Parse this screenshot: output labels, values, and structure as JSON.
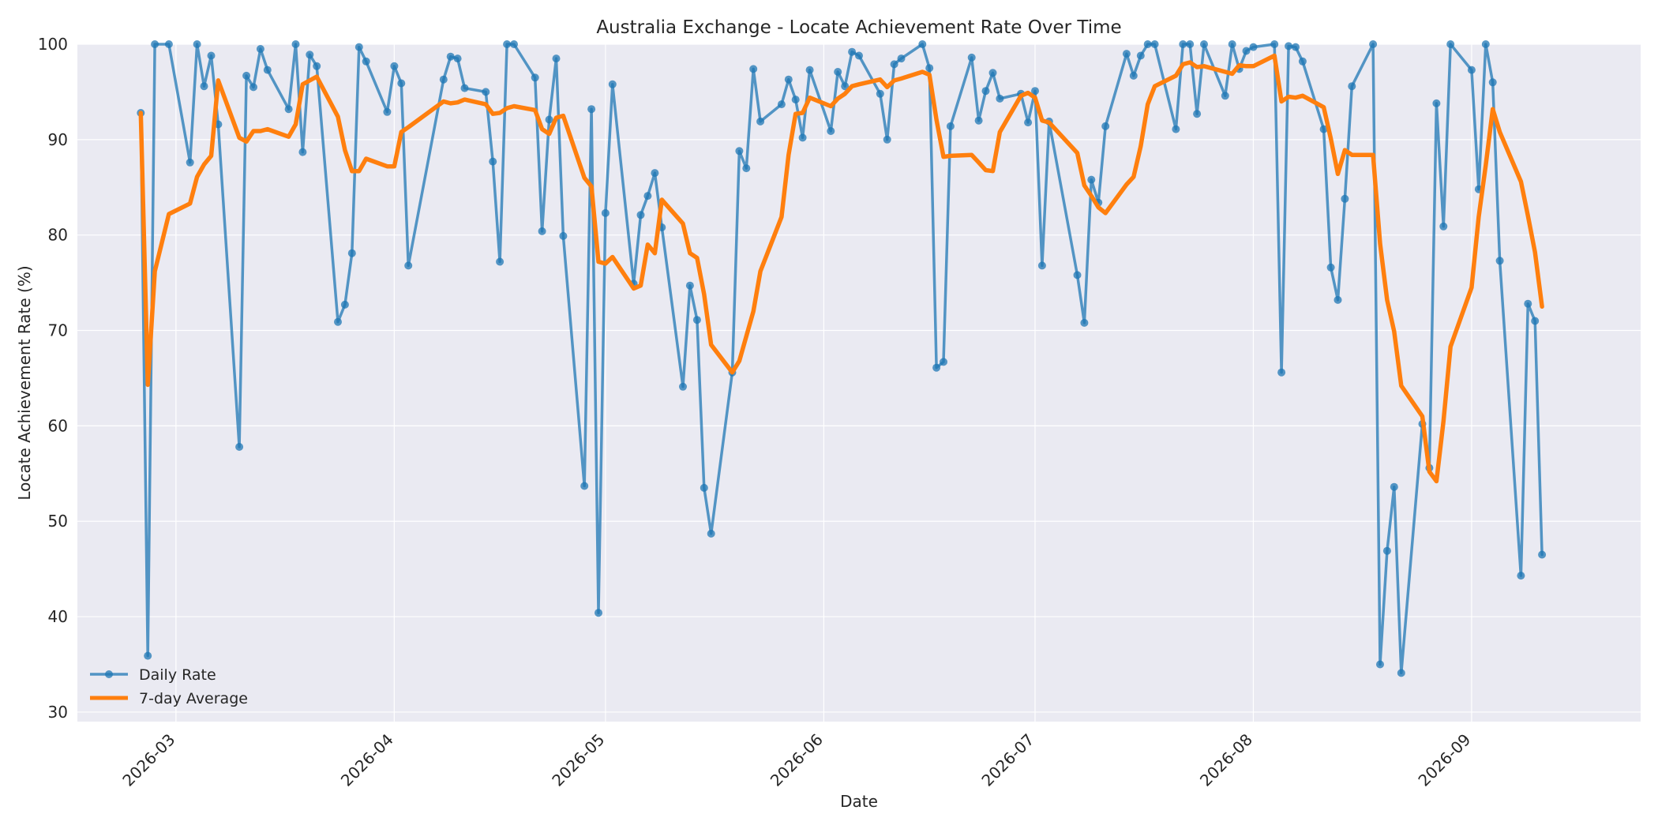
{
  "chart_data": {
    "type": "line",
    "title": "Australia Exchange - Locate Achievement Rate Over Time",
    "xlabel": "Date",
    "ylabel": "Locate Achievement Rate (%)",
    "xlim": [
      "2026-02-15",
      "2026-09-25"
    ],
    "ylim": [
      29,
      100
    ],
    "yticks": [
      30,
      40,
      50,
      60,
      70,
      80,
      90,
      100
    ],
    "xticks": [
      "2026-03",
      "2026-04",
      "2026-05",
      "2026-06",
      "2026-07",
      "2026-08",
      "2026-09"
    ],
    "grid": true,
    "legend_position": "bottom-left",
    "series": [
      {
        "name": "Daily Rate",
        "color": "#1f77b4",
        "marker": true,
        "points": [
          [
            "2026-02-24",
            92.8
          ],
          [
            "2026-02-25",
            35.9
          ],
          [
            "2026-02-26",
            100
          ],
          [
            "2026-02-28",
            100
          ],
          [
            "2026-03-03",
            87.6
          ],
          [
            "2026-03-04",
            100
          ],
          [
            "2026-03-05",
            95.6
          ],
          [
            "2026-03-06",
            98.8
          ],
          [
            "2026-03-07",
            91.6
          ],
          [
            "2026-03-10",
            57.8
          ],
          [
            "2026-03-11",
            96.7
          ],
          [
            "2026-03-12",
            95.5
          ],
          [
            "2026-03-13",
            99.5
          ],
          [
            "2026-03-14",
            97.3
          ],
          [
            "2026-03-17",
            93.2
          ],
          [
            "2026-03-18",
            100
          ],
          [
            "2026-03-19",
            88.7
          ],
          [
            "2026-03-20",
            98.9
          ],
          [
            "2026-03-21",
            97.7
          ],
          [
            "2026-03-24",
            70.9
          ],
          [
            "2026-03-25",
            72.7
          ],
          [
            "2026-03-26",
            78.1
          ],
          [
            "2026-03-27",
            99.7
          ],
          [
            "2026-03-28",
            98.2
          ],
          [
            "2026-03-31",
            92.9
          ],
          [
            "2026-04-01",
            97.7
          ],
          [
            "2026-04-02",
            95.9
          ],
          [
            "2026-04-03",
            76.8
          ],
          [
            "2026-04-08",
            96.3
          ],
          [
            "2026-04-09",
            98.7
          ],
          [
            "2026-04-10",
            98.5
          ],
          [
            "2026-04-11",
            95.4
          ],
          [
            "2026-04-14",
            95
          ],
          [
            "2026-04-15",
            87.7
          ],
          [
            "2026-04-16",
            77.2
          ],
          [
            "2026-04-17",
            100
          ],
          [
            "2026-04-18",
            100
          ],
          [
            "2026-04-21",
            96.5
          ],
          [
            "2026-04-22",
            80.4
          ],
          [
            "2026-04-23",
            92.1
          ],
          [
            "2026-04-24",
            98.5
          ],
          [
            "2026-04-25",
            79.9
          ],
          [
            "2026-04-28",
            53.7
          ],
          [
            "2026-04-29",
            93.2
          ],
          [
            "2026-04-30",
            40.4
          ],
          [
            "2026-05-01",
            82.3
          ],
          [
            "2026-05-02",
            95.8
          ],
          [
            "2026-05-05",
            74.9
          ],
          [
            "2026-05-06",
            82.1
          ],
          [
            "2026-05-07",
            84.1
          ],
          [
            "2026-05-08",
            86.5
          ],
          [
            "2026-05-09",
            80.8
          ],
          [
            "2026-05-12",
            64.1
          ],
          [
            "2026-05-13",
            74.7
          ],
          [
            "2026-05-14",
            71.1
          ],
          [
            "2026-05-15",
            53.5
          ],
          [
            "2026-05-16",
            48.7
          ],
          [
            "2026-05-19",
            65.6
          ],
          [
            "2026-05-20",
            88.8
          ],
          [
            "2026-05-21",
            87
          ],
          [
            "2026-05-22",
            97.4
          ],
          [
            "2026-05-23",
            91.9
          ],
          [
            "2026-05-26",
            93.7
          ],
          [
            "2026-05-27",
            96.3
          ],
          [
            "2026-05-28",
            94.2
          ],
          [
            "2026-05-29",
            90.2
          ],
          [
            "2026-05-30",
            97.3
          ],
          [
            "2026-06-02",
            90.9
          ],
          [
            "2026-06-03",
            97.1
          ],
          [
            "2026-06-04",
            95.6
          ],
          [
            "2026-06-05",
            99.2
          ],
          [
            "2026-06-06",
            98.8
          ],
          [
            "2026-06-09",
            94.8
          ],
          [
            "2026-06-10",
            90
          ],
          [
            "2026-06-11",
            97.9
          ],
          [
            "2026-06-12",
            98.5
          ],
          [
            "2026-06-15",
            100
          ],
          [
            "2026-06-16",
            97.5
          ],
          [
            "2026-06-17",
            66.1
          ],
          [
            "2026-06-18",
            66.7
          ],
          [
            "2026-06-19",
            91.4
          ],
          [
            "2026-06-22",
            98.6
          ],
          [
            "2026-06-23",
            92
          ],
          [
            "2026-06-24",
            95.1
          ],
          [
            "2026-06-25",
            97
          ],
          [
            "2026-06-26",
            94.3
          ],
          [
            "2026-06-29",
            94.8
          ],
          [
            "2026-06-30",
            91.8
          ],
          [
            "2026-07-01",
            95.1
          ],
          [
            "2026-07-02",
            76.8
          ],
          [
            "2026-07-03",
            91.9
          ],
          [
            "2026-07-07",
            75.8
          ],
          [
            "2026-07-08",
            70.8
          ],
          [
            "2026-07-09",
            85.8
          ],
          [
            "2026-07-10",
            83.4
          ],
          [
            "2026-07-11",
            91.4
          ],
          [
            "2026-07-14",
            99
          ],
          [
            "2026-07-15",
            96.7
          ],
          [
            "2026-07-16",
            98.8
          ],
          [
            "2026-07-17",
            100
          ],
          [
            "2026-07-18",
            100
          ],
          [
            "2026-07-21",
            91.1
          ],
          [
            "2026-07-22",
            100
          ],
          [
            "2026-07-23",
            100
          ],
          [
            "2026-07-24",
            92.7
          ],
          [
            "2026-07-25",
            100
          ],
          [
            "2026-07-28",
            94.6
          ],
          [
            "2026-07-29",
            100
          ],
          [
            "2026-07-30",
            97.4
          ],
          [
            "2026-07-31",
            99.3
          ],
          [
            "2026-08-01",
            99.7
          ],
          [
            "2026-08-04",
            100
          ],
          [
            "2026-08-05",
            65.6
          ],
          [
            "2026-08-06",
            99.8
          ],
          [
            "2026-08-07",
            99.7
          ],
          [
            "2026-08-08",
            98.2
          ],
          [
            "2026-08-11",
            91.1
          ],
          [
            "2026-08-12",
            76.6
          ],
          [
            "2026-08-13",
            73.2
          ],
          [
            "2026-08-14",
            83.8
          ],
          [
            "2026-08-15",
            95.6
          ],
          [
            "2026-08-18",
            100
          ],
          [
            "2026-08-19",
            35
          ],
          [
            "2026-08-20",
            46.9
          ],
          [
            "2026-08-21",
            53.6
          ],
          [
            "2026-08-22",
            34.1
          ],
          [
            "2026-08-25",
            60.2
          ],
          [
            "2026-08-26",
            55.6
          ],
          [
            "2026-08-27",
            93.8
          ],
          [
            "2026-08-28",
            80.9
          ],
          [
            "2026-08-29",
            100
          ],
          [
            "2026-09-01",
            97.3
          ],
          [
            "2026-09-02",
            84.8
          ],
          [
            "2026-09-03",
            100
          ],
          [
            "2026-09-04",
            96
          ],
          [
            "2026-09-05",
            77.3
          ],
          [
            "2026-09-08",
            44.3
          ],
          [
            "2026-09-09",
            72.8
          ],
          [
            "2026-09-10",
            71
          ],
          [
            "2026-09-11",
            46.5
          ]
        ]
      },
      {
        "name": "7-day Average",
        "color": "#ff7f0e",
        "marker": false,
        "points": [
          [
            "2026-02-24",
            92.8
          ],
          [
            "2026-02-25",
            64.3
          ],
          [
            "2026-02-26",
            76.2
          ],
          [
            "2026-02-28",
            82.2
          ],
          [
            "2026-03-03",
            83.3
          ],
          [
            "2026-03-04",
            86.1
          ],
          [
            "2026-03-05",
            87.4
          ],
          [
            "2026-03-06",
            88.3
          ],
          [
            "2026-03-07",
            96.2
          ],
          [
            "2026-03-10",
            90.2
          ],
          [
            "2026-03-11",
            89.8
          ],
          [
            "2026-03-12",
            90.9
          ],
          [
            "2026-03-13",
            90.9
          ],
          [
            "2026-03-14",
            91.1
          ],
          [
            "2026-03-17",
            90.3
          ],
          [
            "2026-03-18",
            91.6
          ],
          [
            "2026-03-19",
            95.8
          ],
          [
            "2026-03-20",
            96.2
          ],
          [
            "2026-03-21",
            96.6
          ],
          [
            "2026-03-24",
            92.4
          ],
          [
            "2026-03-25",
            88.9
          ],
          [
            "2026-03-26",
            86.7
          ],
          [
            "2026-03-27",
            86.7
          ],
          [
            "2026-03-28",
            88
          ],
          [
            "2026-03-31",
            87.2
          ],
          [
            "2026-04-01",
            87.2
          ],
          [
            "2026-04-02",
            90.8
          ],
          [
            "2026-04-03",
            91.3
          ],
          [
            "2026-04-08",
            94
          ],
          [
            "2026-04-09",
            93.8
          ],
          [
            "2026-04-10",
            93.9
          ],
          [
            "2026-04-11",
            94.2
          ],
          [
            "2026-04-14",
            93.7
          ],
          [
            "2026-04-15",
            92.7
          ],
          [
            "2026-04-16",
            92.8
          ],
          [
            "2026-04-17",
            93.3
          ],
          [
            "2026-04-18",
            93.5
          ],
          [
            "2026-04-21",
            93.1
          ],
          [
            "2026-04-22",
            91.1
          ],
          [
            "2026-04-23",
            90.6
          ],
          [
            "2026-04-24",
            92.3
          ],
          [
            "2026-04-25",
            92.5
          ],
          [
            "2026-04-28",
            86
          ],
          [
            "2026-04-29",
            85.1
          ],
          [
            "2026-04-30",
            77.2
          ],
          [
            "2026-05-01",
            77
          ],
          [
            "2026-05-02",
            77.7
          ],
          [
            "2026-05-05",
            74.4
          ],
          [
            "2026-05-06",
            74.7
          ],
          [
            "2026-05-07",
            79
          ],
          [
            "2026-05-08",
            78.1
          ],
          [
            "2026-05-09",
            83.7
          ],
          [
            "2026-05-12",
            81.2
          ],
          [
            "2026-05-13",
            78.1
          ],
          [
            "2026-05-14",
            77.6
          ],
          [
            "2026-05-15",
            73.8
          ],
          [
            "2026-05-16",
            68.5
          ],
          [
            "2026-05-19",
            65.6
          ],
          [
            "2026-05-20",
            66.8
          ],
          [
            "2026-05-22",
            72
          ],
          [
            "2026-05-23",
            76.2
          ],
          [
            "2026-05-26",
            81.9
          ],
          [
            "2026-05-27",
            88.4
          ],
          [
            "2026-05-28",
            92.7
          ],
          [
            "2026-05-29",
            92.8
          ],
          [
            "2026-05-30",
            94.4
          ],
          [
            "2026-06-02",
            93.5
          ],
          [
            "2026-06-03",
            94.3
          ],
          [
            "2026-06-04",
            94.8
          ],
          [
            "2026-06-05",
            95.6
          ],
          [
            "2026-06-06",
            95.8
          ],
          [
            "2026-06-09",
            96.3
          ],
          [
            "2026-06-10",
            95.5
          ],
          [
            "2026-06-11",
            96.2
          ],
          [
            "2026-06-12",
            96.4
          ],
          [
            "2026-06-15",
            97.1
          ],
          [
            "2026-06-16",
            96.8
          ],
          [
            "2026-06-17",
            92.1
          ],
          [
            "2026-06-18",
            88.2
          ],
          [
            "2026-06-19",
            88.3
          ],
          [
            "2026-06-22",
            88.4
          ],
          [
            "2026-06-23",
            87.6
          ],
          [
            "2026-06-24",
            86.8
          ],
          [
            "2026-06-25",
            86.7
          ],
          [
            "2026-06-26",
            90.8
          ],
          [
            "2026-06-29",
            94.6
          ],
          [
            "2026-06-30",
            94.9
          ],
          [
            "2026-07-01",
            94.4
          ],
          [
            "2026-07-02",
            92
          ],
          [
            "2026-07-03",
            91.8
          ],
          [
            "2026-07-07",
            88.6
          ],
          [
            "2026-07-08",
            85.2
          ],
          [
            "2026-07-09",
            84.1
          ],
          [
            "2026-07-10",
            82.9
          ],
          [
            "2026-07-11",
            82.3
          ],
          [
            "2026-07-14",
            85.3
          ],
          [
            "2026-07-15",
            86.1
          ],
          [
            "2026-07-16",
            89.3
          ],
          [
            "2026-07-17",
            93.7
          ],
          [
            "2026-07-18",
            95.6
          ],
          [
            "2026-07-21",
            96.7
          ],
          [
            "2026-07-22",
            97.9
          ],
          [
            "2026-07-23",
            98.1
          ],
          [
            "2026-07-24",
            97.6
          ],
          [
            "2026-07-25",
            97.7
          ],
          [
            "2026-07-28",
            97.1
          ],
          [
            "2026-07-29",
            96.9
          ],
          [
            "2026-07-30",
            97.8
          ],
          [
            "2026-07-31",
            97.7
          ],
          [
            "2026-08-01",
            97.7
          ],
          [
            "2026-08-04",
            98.8
          ],
          [
            "2026-08-05",
            94
          ],
          [
            "2026-08-06",
            94.5
          ],
          [
            "2026-08-07",
            94.4
          ],
          [
            "2026-08-08",
            94.6
          ],
          [
            "2026-08-11",
            93.4
          ],
          [
            "2026-08-12",
            90.1
          ],
          [
            "2026-08-13",
            86.4
          ],
          [
            "2026-08-14",
            88.9
          ],
          [
            "2026-08-15",
            88.4
          ],
          [
            "2026-08-18",
            88.4
          ],
          [
            "2026-08-19",
            79.1
          ],
          [
            "2026-08-20",
            73.2
          ],
          [
            "2026-08-21",
            69.9
          ],
          [
            "2026-08-22",
            64.2
          ],
          [
            "2026-08-25",
            61
          ],
          [
            "2026-08-26",
            55.2
          ],
          [
            "2026-08-27",
            54.2
          ],
          [
            "2026-08-28",
            60.5
          ],
          [
            "2026-08-29",
            68.3
          ],
          [
            "2026-09-01",
            74.5
          ],
          [
            "2026-09-02",
            81.9
          ],
          [
            "2026-09-03",
            87.3
          ],
          [
            "2026-09-04",
            93.2
          ],
          [
            "2026-09-05",
            90.8
          ],
          [
            "2026-09-08",
            85.6
          ],
          [
            "2026-09-09",
            82
          ],
          [
            "2026-09-10",
            78.2
          ],
          [
            "2026-09-11",
            72.5
          ]
        ]
      }
    ]
  }
}
